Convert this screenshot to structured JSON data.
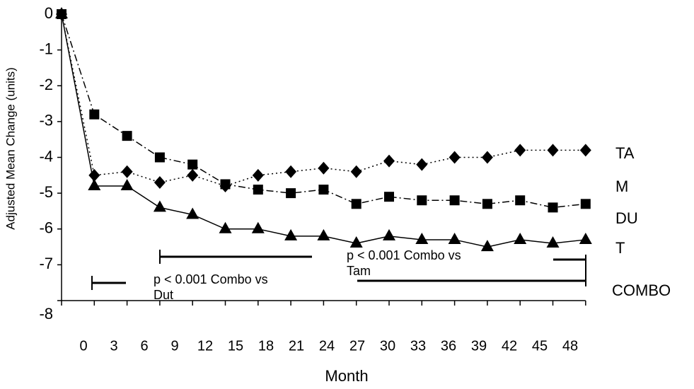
{
  "chart_data": {
    "type": "line",
    "x_label": "Month",
    "y_label": "Adjusted Mean Change (units)",
    "categories": [
      "0",
      "3",
      "6",
      "9",
      "12",
      "15",
      "18",
      "21",
      "24",
      "27",
      "30",
      "33",
      "36",
      "39",
      "42",
      "45",
      "48"
    ],
    "series": [
      {
        "color": "#000000",
        "marker": "diamond",
        "dash": "2,4",
        "values": [
          0,
          -4.5,
          -4.4,
          -4.7,
          -4.5,
          -4.8,
          -4.5,
          -4.4,
          -4.3,
          -4.4,
          -4.1,
          -4.2,
          -4.0,
          -4.0,
          -3.8,
          -3.8,
          -3.8
        ]
      },
      {
        "color": "#000000",
        "marker": "square",
        "dash": "10,4,2,4",
        "values": [
          0,
          -2.8,
          -3.4,
          -4.0,
          -4.2,
          -4.75,
          -4.9,
          -5.0,
          -4.9,
          -5.3,
          -5.1,
          -5.2,
          -5.2,
          -5.3,
          -5.2,
          -5.4,
          -5.3
        ]
      },
      {
        "color": "#000000",
        "marker": "triangle",
        "dash": "none",
        "values": [
          0,
          -4.8,
          -4.8,
          -5.4,
          -5.6,
          -6.0,
          -6.0,
          -6.2,
          -6.2,
          -6.4,
          -6.2,
          -6.3,
          -6.3,
          -6.5,
          -6.3,
          -6.4,
          -6.3
        ]
      }
    ],
    "ylim": [
      -8,
      0
    ],
    "yticks": [
      0,
      -1,
      -2,
      -3,
      -4,
      -5,
      -6,
      -7,
      -8
    ],
    "grid": false,
    "side_labels": [
      "TA",
      "M",
      "DU",
      "T",
      "COMBO"
    ],
    "annotations": [
      {
        "lines": [
          "p < 0.001 Combo vs",
          "Dut"
        ]
      },
      {
        "lines": [
          "p < 0.001 Combo vs",
          "Tam"
        ]
      }
    ]
  }
}
